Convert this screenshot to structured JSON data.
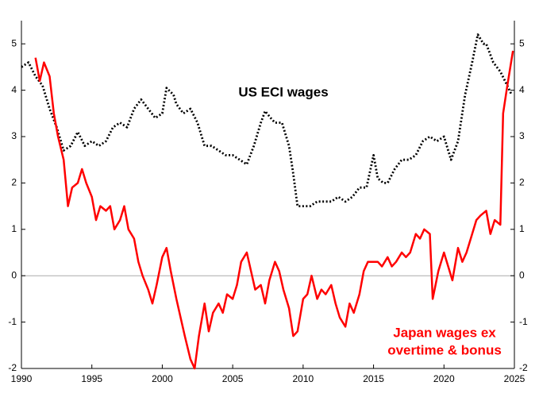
{
  "chart_data": {
    "type": "line",
    "xlim": [
      1990,
      2025
    ],
    "xticks": [
      1990,
      1995,
      2000,
      2005,
      2010,
      2015,
      2020,
      2025
    ],
    "ylim": [
      -2,
      5.5
    ],
    "yticks": [
      -2,
      -1,
      0,
      1,
      2,
      3,
      4,
      5
    ],
    "zero_line": true,
    "annotations": [
      "US ECI wages",
      "Japan wages ex",
      "overtime & bonus"
    ],
    "series": [
      {
        "name": "US ECI wages",
        "color": "#000000",
        "dashed": true,
        "x": [
          1990,
          1990.5,
          1991,
          1991.5,
          1992,
          1992.5,
          1993,
          1993.5,
          1994,
          1994.5,
          1995,
          1995.5,
          1996,
          1996.5,
          1997,
          1997.5,
          1998,
          1998.5,
          1999,
          1999.5,
          2000,
          2000.3,
          2000.8,
          2001,
          2001.5,
          2002,
          2002.5,
          2003,
          2003.5,
          2004,
          2004.5,
          2005,
          2005.5,
          2006,
          2006.5,
          2007,
          2007.3,
          2007.7,
          2008,
          2008.5,
          2009,
          2009.3,
          2009.6,
          2010,
          2010.5,
          2011,
          2011.5,
          2012,
          2012.5,
          2013,
          2013.5,
          2014,
          2014.5,
          2015,
          2015.3,
          2015.7,
          2016,
          2016.5,
          2017,
          2017.5,
          2018,
          2018.5,
          2019,
          2019.5,
          2020,
          2020.5,
          2021,
          2021.5,
          2022,
          2022.4,
          2022.8,
          2023,
          2023.5,
          2024,
          2024.5,
          2024.8
        ],
        "values": [
          4.5,
          4.6,
          4.3,
          4.1,
          3.6,
          3.2,
          2.7,
          2.8,
          3.1,
          2.8,
          2.9,
          2.8,
          2.9,
          3.2,
          3.3,
          3.2,
          3.6,
          3.8,
          3.6,
          3.4,
          3.5,
          4.05,
          3.9,
          3.7,
          3.5,
          3.6,
          3.3,
          2.8,
          2.8,
          2.7,
          2.6,
          2.6,
          2.5,
          2.4,
          2.8,
          3.3,
          3.55,
          3.4,
          3.3,
          3.3,
          2.8,
          2.2,
          1.5,
          1.5,
          1.5,
          1.6,
          1.6,
          1.6,
          1.7,
          1.6,
          1.7,
          1.9,
          1.9,
          2.6,
          2.1,
          2.0,
          2.0,
          2.3,
          2.5,
          2.5,
          2.6,
          2.9,
          3.0,
          2.9,
          3.0,
          2.5,
          2.9,
          3.9,
          4.6,
          5.2,
          5.0,
          5.0,
          4.6,
          4.4,
          4.1,
          3.9
        ]
      },
      {
        "name": "Japan wages ex overtime & bonus",
        "color": "#ff0000",
        "dashed": false,
        "x": [
          1991,
          1991.3,
          1991.6,
          1992,
          1992.3,
          1992.6,
          1993,
          1993.3,
          1993.6,
          1994,
          1994.3,
          1994.6,
          1995,
          1995.3,
          1995.6,
          1996,
          1996.3,
          1996.6,
          1997,
          1997.3,
          1997.6,
          1998,
          1998.3,
          1998.6,
          1999,
          1999.3,
          1999.6,
          2000,
          2000.3,
          2000.6,
          2001,
          2001.3,
          2001.6,
          2002,
          2002.3,
          2002.6,
          2003,
          2003.3,
          2003.6,
          2004,
          2004.3,
          2004.6,
          2005,
          2005.3,
          2005.6,
          2006,
          2006.3,
          2006.6,
          2007,
          2007.3,
          2007.6,
          2008,
          2008.3,
          2008.6,
          2009,
          2009.3,
          2009.6,
          2010,
          2010.3,
          2010.6,
          2011,
          2011.3,
          2011.6,
          2012,
          2012.3,
          2012.6,
          2013,
          2013.3,
          2013.6,
          2014,
          2014.3,
          2014.6,
          2015,
          2015.3,
          2015.6,
          2016,
          2016.3,
          2016.6,
          2017,
          2017.3,
          2017.6,
          2018,
          2018.3,
          2018.6,
          2019,
          2019.2,
          2019.6,
          2020,
          2020.3,
          2020.6,
          2021,
          2021.3,
          2021.6,
          2022,
          2022.3,
          2022.6,
          2023,
          2023.3,
          2023.6,
          2024,
          2024.2,
          2024.5,
          2024.9
        ],
        "values": [
          4.7,
          4.2,
          4.6,
          4.3,
          3.5,
          3.0,
          2.5,
          1.5,
          1.9,
          2.0,
          2.3,
          2.0,
          1.7,
          1.2,
          1.5,
          1.4,
          1.5,
          1.0,
          1.2,
          1.5,
          1.0,
          0.8,
          0.3,
          0.0,
          -0.3,
          -0.6,
          -0.2,
          0.4,
          0.6,
          0.1,
          -0.5,
          -0.9,
          -1.3,
          -1.8,
          -2.0,
          -1.3,
          -0.6,
          -1.2,
          -0.8,
          -0.6,
          -0.8,
          -0.4,
          -0.5,
          -0.2,
          0.3,
          0.5,
          0.1,
          -0.3,
          -0.2,
          -0.6,
          -0.1,
          0.3,
          0.1,
          -0.3,
          -0.7,
          -1.3,
          -1.2,
          -0.5,
          -0.4,
          0.0,
          -0.5,
          -0.3,
          -0.4,
          -0.2,
          -0.6,
          -0.9,
          -1.1,
          -0.6,
          -0.8,
          -0.4,
          0.1,
          0.3,
          0.3,
          0.3,
          0.2,
          0.4,
          0.2,
          0.3,
          0.5,
          0.4,
          0.5,
          0.9,
          0.8,
          1.0,
          0.9,
          -0.5,
          0.1,
          0.5,
          0.2,
          -0.1,
          0.6,
          0.3,
          0.5,
          0.9,
          1.2,
          1.3,
          1.4,
          0.9,
          1.2,
          1.1,
          3.5,
          4.1,
          4.85
        ]
      }
    ]
  }
}
